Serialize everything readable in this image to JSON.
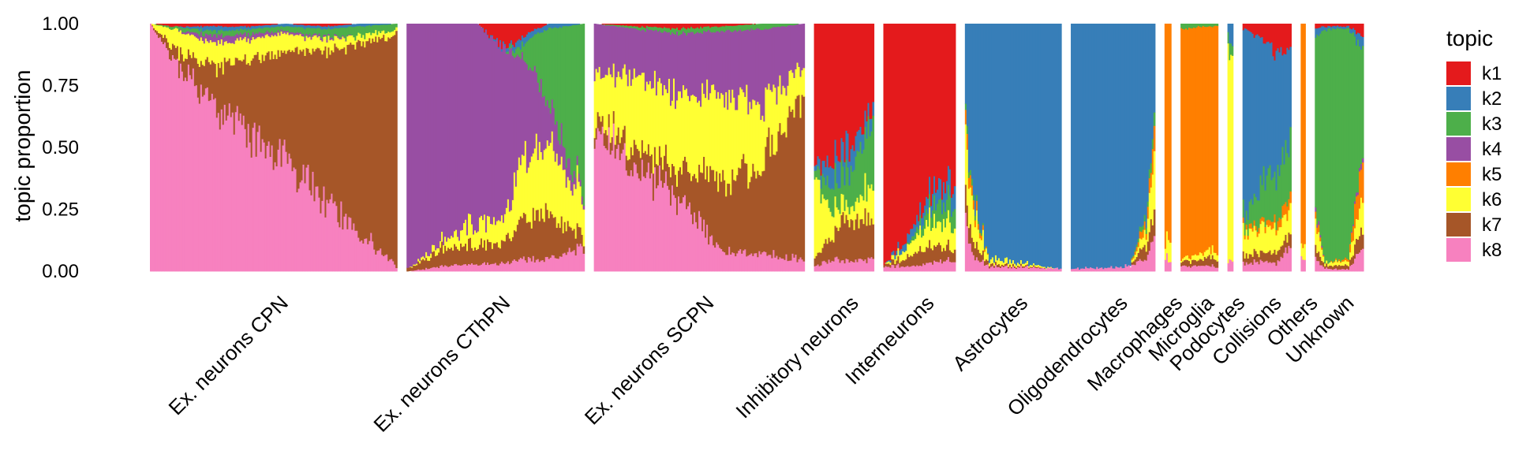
{
  "chart_data": {
    "type": "bar",
    "subtype": "stacked structure plot (one thin bar per cell, grouped by cell type)",
    "ylabel": "topic proportion",
    "xlabel": "",
    "ylim": [
      0,
      1
    ],
    "y_ticks": [
      "0.00",
      "0.25",
      "0.50",
      "0.75",
      "1.00"
    ],
    "grid": false,
    "legend": {
      "title": "topic",
      "placement": "right",
      "entries": [
        "k1",
        "k2",
        "k3",
        "k4",
        "k5",
        "k6",
        "k7",
        "k8"
      ]
    },
    "colors": {
      "k1": "#E41A1C",
      "k2": "#377EB8",
      "k3": "#4DAF4A",
      "k4": "#984EA3",
      "k5": "#FF7F00",
      "k6": "#FFFF33",
      "k7": "#A65628",
      "k8": "#F781BF"
    },
    "stack_order_bottom_to_top": [
      "k8",
      "k7",
      "k6",
      "k5",
      "k4",
      "k3",
      "k2",
      "k1"
    ],
    "groups": [
      {
        "name": "Ex. neurons CPN",
        "relative_width": 264,
        "profile": [
          {
            "t": 0.0,
            "k1": 0.0,
            "k2": 0.0,
            "k3": 0.0,
            "k4": 0.0,
            "k5": 0.0,
            "k6": 0.0,
            "k7": 0.0,
            "k8": 1.0
          },
          {
            "t": 0.1,
            "k1": 0.01,
            "k2": 0.0,
            "k3": 0.01,
            "k4": 0.0,
            "k5": 0.0,
            "k6": 0.08,
            "k7": 0.05,
            "k8": 0.85
          },
          {
            "t": 0.25,
            "k1": 0.01,
            "k2": 0.02,
            "k3": 0.02,
            "k4": 0.03,
            "k5": 0.0,
            "k6": 0.09,
            "k7": 0.15,
            "k8": 0.68
          },
          {
            "t": 0.4,
            "k1": 0.01,
            "k2": 0.01,
            "k3": 0.02,
            "k4": 0.02,
            "k5": 0.0,
            "k6": 0.08,
            "k7": 0.31,
            "k8": 0.55
          },
          {
            "t": 0.55,
            "k1": 0.0,
            "k2": 0.01,
            "k3": 0.02,
            "k4": 0.01,
            "k5": 0.0,
            "k6": 0.07,
            "k7": 0.44,
            "k8": 0.45
          },
          {
            "t": 0.7,
            "k1": 0.01,
            "k2": 0.01,
            "k3": 0.03,
            "k4": 0.01,
            "k5": 0.0,
            "k6": 0.05,
            "k7": 0.59,
            "k8": 0.3
          },
          {
            "t": 0.85,
            "k1": 0.0,
            "k2": 0.01,
            "k3": 0.04,
            "k4": 0.0,
            "k5": 0.0,
            "k6": 0.03,
            "k7": 0.77,
            "k8": 0.15
          },
          {
            "t": 1.0,
            "k1": 0.0,
            "k2": 0.0,
            "k3": 0.02,
            "k4": 0.0,
            "k5": 0.0,
            "k6": 0.02,
            "k7": 0.94,
            "k8": 0.02
          }
        ]
      },
      {
        "name": "Ex. neurons CThPN",
        "relative_width": 190,
        "profile": [
          {
            "t": 0.0,
            "k1": 0.0,
            "k2": 0.0,
            "k3": 0.0,
            "k4": 0.99,
            "k5": 0.0,
            "k6": 0.0,
            "k7": 0.01,
            "k8": 0.0
          },
          {
            "t": 0.2,
            "k1": 0.0,
            "k2": 0.0,
            "k3": 0.0,
            "k4": 0.88,
            "k5": 0.0,
            "k6": 0.03,
            "k7": 0.07,
            "k8": 0.02
          },
          {
            "t": 0.4,
            "k1": 0.0,
            "k2": 0.0,
            "k3": 0.0,
            "k4": 0.8,
            "k5": 0.0,
            "k6": 0.09,
            "k7": 0.08,
            "k8": 0.03
          },
          {
            "t": 0.55,
            "k1": 0.1,
            "k2": 0.01,
            "k3": 0.0,
            "k4": 0.68,
            "k5": 0.0,
            "k6": 0.1,
            "k7": 0.08,
            "k8": 0.03
          },
          {
            "t": 0.65,
            "k1": 0.05,
            "k2": 0.03,
            "k3": 0.04,
            "k4": 0.45,
            "k5": 0.0,
            "k6": 0.23,
            "k7": 0.15,
            "k8": 0.05
          },
          {
            "t": 0.8,
            "k1": 0.0,
            "k2": 0.02,
            "k3": 0.3,
            "k4": 0.15,
            "k5": 0.0,
            "k6": 0.3,
            "k7": 0.18,
            "k8": 0.05
          },
          {
            "t": 1.0,
            "k1": 0.0,
            "k2": 0.0,
            "k3": 0.7,
            "k4": 0.02,
            "k5": 0.0,
            "k6": 0.14,
            "k7": 0.04,
            "k8": 0.1
          }
        ]
      },
      {
        "name": "Ex. neurons SCPN",
        "relative_width": 225,
        "profile": [
          {
            "t": 0.0,
            "k1": 0.0,
            "k2": 0.0,
            "k3": 0.0,
            "k4": 0.2,
            "k5": 0.0,
            "k6": 0.2,
            "k7": 0.05,
            "k8": 0.55
          },
          {
            "t": 0.2,
            "k1": 0.01,
            "k2": 0.0,
            "k3": 0.01,
            "k4": 0.2,
            "k5": 0.0,
            "k6": 0.28,
            "k7": 0.08,
            "k8": 0.42
          },
          {
            "t": 0.4,
            "k1": 0.02,
            "k2": 0.0,
            "k3": 0.02,
            "k4": 0.25,
            "k5": 0.0,
            "k6": 0.3,
            "k7": 0.11,
            "k8": 0.3
          },
          {
            "t": 0.6,
            "k1": 0.01,
            "k2": 0.0,
            "k3": 0.02,
            "k4": 0.25,
            "k5": 0.0,
            "k6": 0.35,
            "k7": 0.28,
            "k8": 0.09
          },
          {
            "t": 0.8,
            "k1": 0.0,
            "k2": 0.0,
            "k3": 0.02,
            "k4": 0.3,
            "k5": 0.0,
            "k6": 0.25,
            "k7": 0.36,
            "k8": 0.07
          },
          {
            "t": 1.0,
            "k1": 0.0,
            "k2": 0.0,
            "k3": 0.0,
            "k4": 0.18,
            "k5": 0.0,
            "k6": 0.12,
            "k7": 0.65,
            "k8": 0.05
          }
        ]
      },
      {
        "name": "Inhibitory neurons",
        "relative_width": 64,
        "profile": [
          {
            "t": 0.0,
            "k1": 0.6,
            "k2": 0.02,
            "k3": 0.03,
            "k4": 0.0,
            "k5": 0.0,
            "k6": 0.3,
            "k7": 0.03,
            "k8": 0.02
          },
          {
            "t": 0.3,
            "k1": 0.55,
            "k2": 0.1,
            "k3": 0.1,
            "k4": 0.0,
            "k5": 0.0,
            "k6": 0.1,
            "k7": 0.1,
            "k8": 0.05
          },
          {
            "t": 0.6,
            "k1": 0.48,
            "k2": 0.1,
            "k3": 0.15,
            "k4": 0.0,
            "k5": 0.0,
            "k6": 0.05,
            "k7": 0.18,
            "k8": 0.04
          },
          {
            "t": 1.0,
            "k1": 0.35,
            "k2": 0.05,
            "k3": 0.25,
            "k4": 0.0,
            "k5": 0.0,
            "k6": 0.15,
            "k7": 0.15,
            "k8": 0.05
          }
        ]
      },
      {
        "name": "Interneurons",
        "relative_width": 77,
        "profile": [
          {
            "t": 0.0,
            "k1": 0.97,
            "k2": 0.0,
            "k3": 0.0,
            "k4": 0.0,
            "k5": 0.0,
            "k6": 0.0,
            "k7": 0.01,
            "k8": 0.02
          },
          {
            "t": 0.3,
            "k1": 0.88,
            "k2": 0.03,
            "k3": 0.0,
            "k4": 0.0,
            "k5": 0.0,
            "k6": 0.04,
            "k7": 0.03,
            "k8": 0.02
          },
          {
            "t": 0.6,
            "k1": 0.7,
            "k2": 0.05,
            "k3": 0.05,
            "k4": 0.0,
            "k5": 0.0,
            "k6": 0.1,
            "k7": 0.07,
            "k8": 0.03
          },
          {
            "t": 1.0,
            "k1": 0.6,
            "k2": 0.1,
            "k3": 0.1,
            "k4": 0.0,
            "k5": 0.0,
            "k6": 0.1,
            "k7": 0.05,
            "k8": 0.05
          }
        ]
      },
      {
        "name": "Astrocytes",
        "relative_width": 103,
        "profile": [
          {
            "t": 0.0,
            "k1": 0.0,
            "k2": 0.4,
            "k3": 0.03,
            "k4": 0.0,
            "k5": 0.07,
            "k6": 0.2,
            "k7": 0.1,
            "k8": 0.2
          },
          {
            "t": 0.1,
            "k1": 0.0,
            "k2": 0.75,
            "k3": 0.02,
            "k4": 0.0,
            "k5": 0.03,
            "k6": 0.1,
            "k7": 0.05,
            "k8": 0.05
          },
          {
            "t": 0.25,
            "k1": 0.0,
            "k2": 0.95,
            "k3": 0.0,
            "k4": 0.0,
            "k5": 0.0,
            "k6": 0.02,
            "k7": 0.01,
            "k8": 0.02
          },
          {
            "t": 1.0,
            "k1": 0.0,
            "k2": 0.99,
            "k3": 0.0,
            "k4": 0.0,
            "k5": 0.0,
            "k6": 0.0,
            "k7": 0.0,
            "k8": 0.01
          }
        ]
      },
      {
        "name": "Oligodendrocytes",
        "relative_width": 90,
        "profile": [
          {
            "t": 0.0,
            "k1": 0.0,
            "k2": 0.99,
            "k3": 0.0,
            "k4": 0.0,
            "k5": 0.0,
            "k6": 0.0,
            "k7": 0.0,
            "k8": 0.01
          },
          {
            "t": 0.7,
            "k1": 0.0,
            "k2": 0.98,
            "k3": 0.0,
            "k4": 0.0,
            "k5": 0.0,
            "k6": 0.0,
            "k7": 0.0,
            "k8": 0.02
          },
          {
            "t": 0.9,
            "k1": 0.0,
            "k2": 0.8,
            "k3": 0.02,
            "k4": 0.0,
            "k5": 0.03,
            "k6": 0.05,
            "k7": 0.05,
            "k8": 0.05
          },
          {
            "t": 1.0,
            "k1": 0.0,
            "k2": 0.4,
            "k3": 0.05,
            "k4": 0.0,
            "k5": 0.1,
            "k6": 0.2,
            "k7": 0.1,
            "k8": 0.15
          }
        ]
      },
      {
        "name": "Macrophages",
        "relative_width": 7,
        "profile": [
          {
            "t": 0.0,
            "k1": 0.0,
            "k2": 0.0,
            "k3": 0.0,
            "k4": 0.0,
            "k5": 0.9,
            "k6": 0.05,
            "k7": 0.0,
            "k8": 0.05
          },
          {
            "t": 1.0,
            "k1": 0.0,
            "k2": 0.0,
            "k3": 0.0,
            "k4": 0.0,
            "k5": 0.85,
            "k6": 0.1,
            "k7": 0.0,
            "k8": 0.05
          }
        ]
      },
      {
        "name": "Microglia",
        "relative_width": 40,
        "profile": [
          {
            "t": 0.0,
            "k1": 0.0,
            "k2": 0.0,
            "k3": 0.02,
            "k4": 0.0,
            "k5": 0.93,
            "k6": 0.01,
            "k7": 0.02,
            "k8": 0.02
          },
          {
            "t": 0.5,
            "k1": 0.0,
            "k2": 0.0,
            "k3": 0.01,
            "k4": 0.0,
            "k5": 0.93,
            "k6": 0.02,
            "k7": 0.02,
            "k8": 0.02
          },
          {
            "t": 1.0,
            "k1": 0.0,
            "k2": 0.0,
            "k3": 0.01,
            "k4": 0.0,
            "k5": 0.9,
            "k6": 0.03,
            "k7": 0.04,
            "k8": 0.02
          }
        ]
      },
      {
        "name": "Podocytes",
        "relative_width": 6,
        "profile": [
          {
            "t": 0.0,
            "k1": 0.0,
            "k2": 0.05,
            "k3": 0.05,
            "k4": 0.0,
            "k5": 0.0,
            "k6": 0.85,
            "k7": 0.0,
            "k8": 0.05
          },
          {
            "t": 1.0,
            "k1": 0.0,
            "k2": 0.1,
            "k3": 0.05,
            "k4": 0.0,
            "k5": 0.0,
            "k6": 0.8,
            "k7": 0.0,
            "k8": 0.05
          }
        ]
      },
      {
        "name": "Collisions",
        "relative_width": 52,
        "profile": [
          {
            "t": 0.0,
            "k1": 0.02,
            "k2": 0.75,
            "k3": 0.05,
            "k4": 0.0,
            "k5": 0.02,
            "k6": 0.1,
            "k7": 0.03,
            "k8": 0.03
          },
          {
            "t": 0.4,
            "k1": 0.05,
            "k2": 0.6,
            "k3": 0.15,
            "k4": 0.0,
            "k5": 0.02,
            "k6": 0.1,
            "k7": 0.04,
            "k8": 0.04
          },
          {
            "t": 0.7,
            "k1": 0.12,
            "k2": 0.5,
            "k3": 0.2,
            "k4": 0.0,
            "k5": 0.03,
            "k6": 0.08,
            "k7": 0.04,
            "k8": 0.03
          },
          {
            "t": 1.0,
            "k1": 0.1,
            "k2": 0.4,
            "k3": 0.2,
            "k4": 0.0,
            "k5": 0.05,
            "k6": 0.1,
            "k7": 0.05,
            "k8": 0.1
          }
        ]
      },
      {
        "name": "Others",
        "relative_width": 5,
        "profile": [
          {
            "t": 0.0,
            "k1": 0.0,
            "k2": 0.0,
            "k3": 0.0,
            "k4": 0.0,
            "k5": 0.9,
            "k6": 0.05,
            "k7": 0.0,
            "k8": 0.05
          },
          {
            "t": 1.0,
            "k1": 0.0,
            "k2": 0.0,
            "k3": 0.0,
            "k4": 0.0,
            "k5": 0.88,
            "k6": 0.07,
            "k7": 0.0,
            "k8": 0.05
          }
        ]
      },
      {
        "name": "Unknown",
        "relative_width": 52,
        "profile": [
          {
            "t": 0.0,
            "k1": 0.02,
            "k2": 0.03,
            "k3": 0.7,
            "k4": 0.02,
            "k5": 0.03,
            "k6": 0.1,
            "k7": 0.05,
            "k8": 0.05
          },
          {
            "t": 0.2,
            "k1": 0.01,
            "k2": 0.01,
            "k3": 0.95,
            "k4": 0.0,
            "k5": 0.0,
            "k6": 0.01,
            "k7": 0.01,
            "k8": 0.01
          },
          {
            "t": 0.7,
            "k1": 0.01,
            "k2": 0.01,
            "k3": 0.92,
            "k4": 0.0,
            "k5": 0.01,
            "k6": 0.02,
            "k7": 0.02,
            "k8": 0.01
          },
          {
            "t": 1.0,
            "k1": 0.05,
            "k2": 0.05,
            "k3": 0.4,
            "k4": 0.02,
            "k5": 0.15,
            "k6": 0.15,
            "k7": 0.08,
            "k8": 0.1
          }
        ]
      }
    ]
  }
}
